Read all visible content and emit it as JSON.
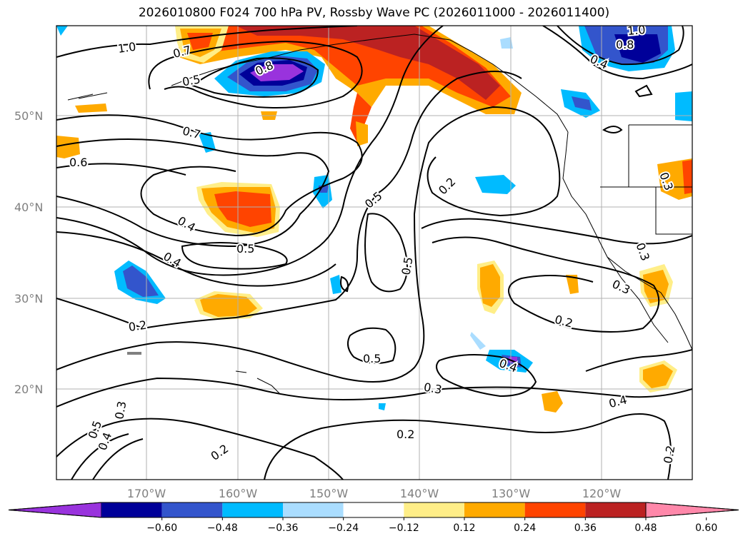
{
  "title": "2026010800 F024 700 hPa PV, Rossby Wave PC (2026011000 - 2026011400)",
  "lat_labels": [
    "50°N",
    "40°N",
    "30°N",
    "20°N"
  ],
  "lon_labels": [
    "170°W",
    "160°W",
    "150°W",
    "140°W",
    "130°W",
    "120°W"
  ],
  "colorbar": {
    "ticks": [
      "−0.60",
      "−0.48",
      "−0.36",
      "−0.24",
      "−0.12",
      "0.12",
      "0.24",
      "0.36",
      "0.48",
      "0.60"
    ],
    "colors": [
      "#9933dd",
      "#000099",
      "#3355cc",
      "#00bbff",
      "#aaddff",
      "#ffffff",
      "#ffee88",
      "#ffaa00",
      "#ff4400",
      "#bb2222",
      "#ff88aa"
    ]
  },
  "contour_labels": [
    {
      "text": "1.0"
    },
    {
      "text": "0.7"
    },
    {
      "text": "0.5"
    },
    {
      "text": "0.8"
    },
    {
      "text": "0.7"
    },
    {
      "text": "0.6"
    },
    {
      "text": "0.4"
    },
    {
      "text": "0.5"
    },
    {
      "text": "0.4"
    },
    {
      "text": "0.2"
    },
    {
      "text": "0.5"
    },
    {
      "text": "0.5"
    },
    {
      "text": "0.5"
    },
    {
      "text": "0.2"
    },
    {
      "text": "0.3"
    },
    {
      "text": "0.2"
    },
    {
      "text": "0.4"
    },
    {
      "text": "0.3"
    },
    {
      "text": "0.2"
    },
    {
      "text": "0.4"
    },
    {
      "text": "0.3"
    },
    {
      "text": "0.2"
    },
    {
      "text": "0.5"
    },
    {
      "text": "0.4"
    },
    {
      "text": "0.3"
    },
    {
      "text": "1.0"
    },
    {
      "text": "0.8"
    },
    {
      "text": "0.4"
    },
    {
      "text": "0.3"
    },
    {
      "text": "0.2"
    }
  ]
}
